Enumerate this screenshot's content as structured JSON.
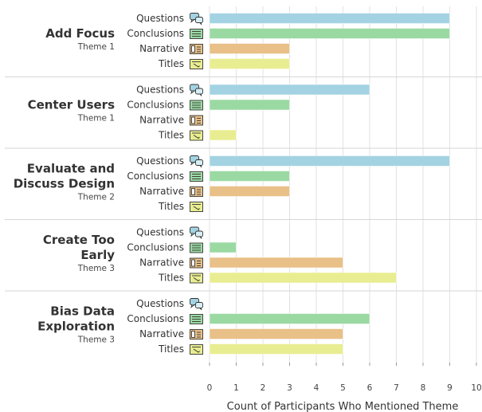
{
  "chart_data": {
    "type": "bar",
    "orientation": "horizontal",
    "xlabel": "Count of Participants Who Mentioned Theme",
    "xlim": [
      0,
      10
    ],
    "xticks": [
      0,
      1,
      2,
      3,
      4,
      5,
      6,
      7,
      8,
      9,
      10
    ],
    "grid": true,
    "categories": [
      "Questions",
      "Conclusions",
      "Narrative",
      "Titles"
    ],
    "category_colors": {
      "Questions": "#a3d3e3",
      "Conclusions": "#9bd9a3",
      "Narrative": "#e8c088",
      "Titles": "#e9ed91"
    },
    "category_icons": {
      "Questions": "chat-bubbles-icon",
      "Conclusions": "notes-list-icon",
      "Narrative": "book-icon",
      "Titles": "title-tag-icon"
    },
    "groups": [
      {
        "title_lines": [
          "Add Focus"
        ],
        "subtitle": "Theme 1",
        "values": [
          9,
          9,
          3,
          3
        ]
      },
      {
        "title_lines": [
          "Center Users"
        ],
        "subtitle": "Theme 1",
        "values": [
          6,
          3,
          0,
          1
        ]
      },
      {
        "title_lines": [
          "Evaluate and",
          "Discuss Design"
        ],
        "subtitle": "Theme 2",
        "values": [
          9,
          3,
          3,
          0
        ]
      },
      {
        "title_lines": [
          "Create Too",
          "Early"
        ],
        "subtitle": "Theme 3",
        "values": [
          0,
          1,
          5,
          7
        ]
      },
      {
        "title_lines": [
          "Bias Data",
          "Exploration"
        ],
        "subtitle": "Theme 3",
        "values": [
          0,
          6,
          5,
          5
        ]
      }
    ]
  }
}
